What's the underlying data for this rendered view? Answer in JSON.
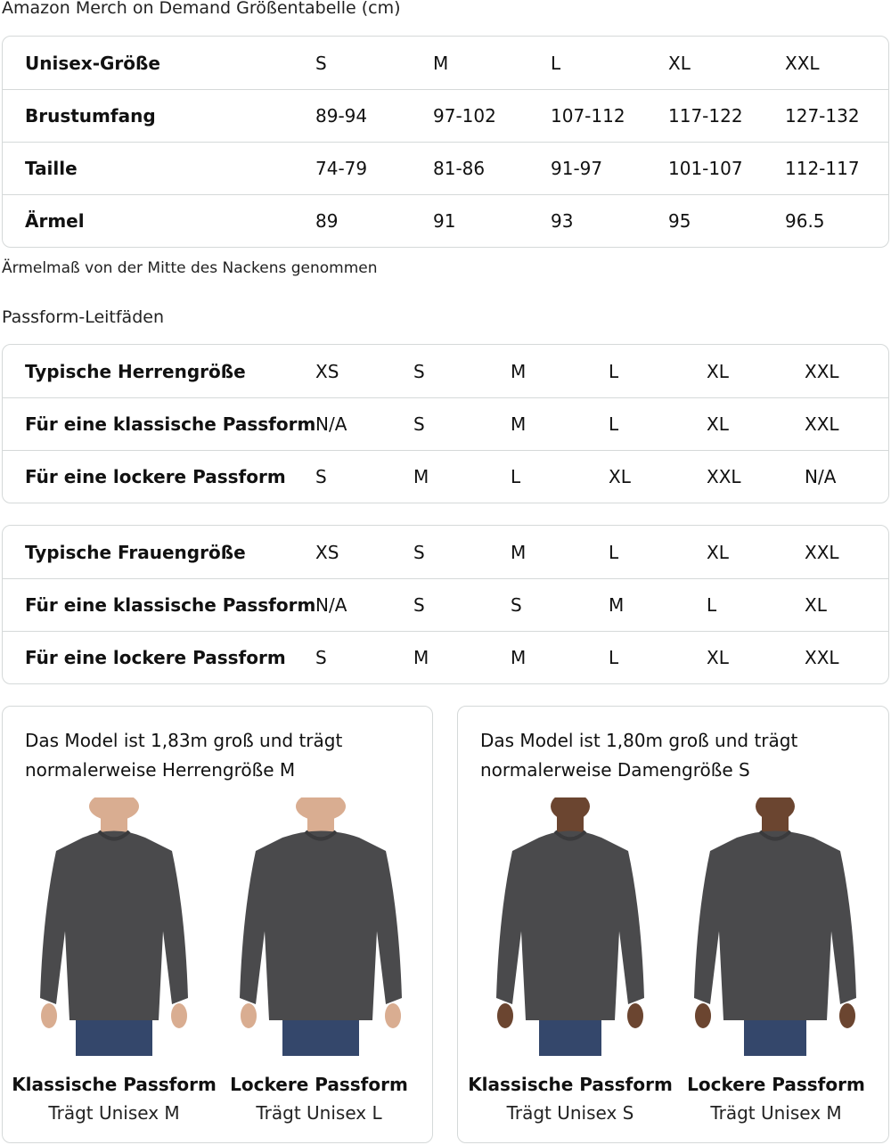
{
  "title": "Amazon Merch on Demand Größentabelle (cm)",
  "size_table": {
    "rows": [
      [
        "Unisex-Größe",
        "S",
        "M",
        "L",
        "XL",
        "XXL"
      ],
      [
        "Brustumfang",
        "89-94",
        "97-102",
        "107-112",
        "117-122",
        "127-132"
      ],
      [
        "Taille",
        "74-79",
        "81-86",
        "91-97",
        "101-107",
        "112-117"
      ],
      [
        "Ärmel",
        "89",
        "91",
        "93",
        "95",
        "96.5"
      ]
    ]
  },
  "sleeve_note": "Ärmelmaß von der Mitte des Nackens genommen",
  "fit_title": "Passform-Leitfäden",
  "men_table": {
    "rows": [
      [
        "Typische Herrengröße",
        "XS",
        "S",
        "M",
        "L",
        "XL",
        "XXL"
      ],
      [
        "Für eine klassische Passform",
        "N/A",
        "S",
        "M",
        "L",
        "XL",
        "XXL"
      ],
      [
        "Für eine lockere Passform",
        "S",
        "M",
        "L",
        "XL",
        "XXL",
        "N/A"
      ]
    ]
  },
  "women_table": {
    "rows": [
      [
        "Typische Frauengröße",
        "XS",
        "S",
        "M",
        "L",
        "XL",
        "XXL"
      ],
      [
        "Für eine klassische Passform",
        "N/A",
        "S",
        "S",
        "M",
        "L",
        "XL"
      ],
      [
        "Für eine lockere Passform",
        "S",
        "M",
        "M",
        "L",
        "XL",
        "XXL"
      ]
    ]
  },
  "cards": [
    {
      "desc_1": "Das Model ist 1,83m groß und trägt",
      "desc_2": "normalerweise Herrengröße M",
      "photos": [
        {
          "fit": "Klassische Passform",
          "wears": "Trägt Unisex M"
        },
        {
          "fit": "Lockere Passform",
          "wears": "Trägt Unisex L"
        }
      ]
    },
    {
      "desc_1": "Das Model ist 1,80m groß und trägt",
      "desc_2": "normalerweise Damengröße S",
      "photos": [
        {
          "fit": "Klassische Passform",
          "wears": "Trägt Unisex S"
        },
        {
          "fit": "Lockere Passform",
          "wears": "Trägt Unisex M"
        }
      ]
    }
  ],
  "colors": {
    "border": "#d5d9d9",
    "sweatshirt": "#4a4a4c",
    "jeans": "#34476b"
  }
}
